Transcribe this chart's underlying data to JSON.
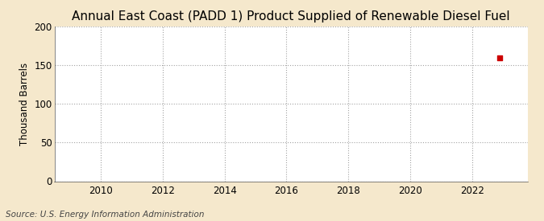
{
  "title": "Annual East Coast (PADD 1) Product Supplied of Renewable Diesel Fuel",
  "ylabel": "Thousand Barrels",
  "source": "Source: U.S. Energy Information Administration",
  "xlim": [
    2008.5,
    2023.8
  ],
  "ylim": [
    0,
    200
  ],
  "yticks": [
    0,
    50,
    100,
    150,
    200
  ],
  "xticks": [
    2010,
    2012,
    2014,
    2016,
    2018,
    2020,
    2022
  ],
  "data_x": [
    2022.9
  ],
  "data_y": [
    160
  ],
  "dot_color": "#cc0000",
  "dot_size": 18,
  "background_color": "#f5e8cc",
  "plot_bg_color": "#ffffff",
  "grid_color": "#999999",
  "title_fontsize": 11,
  "label_fontsize": 8.5,
  "tick_fontsize": 8.5,
  "source_fontsize": 7.5
}
